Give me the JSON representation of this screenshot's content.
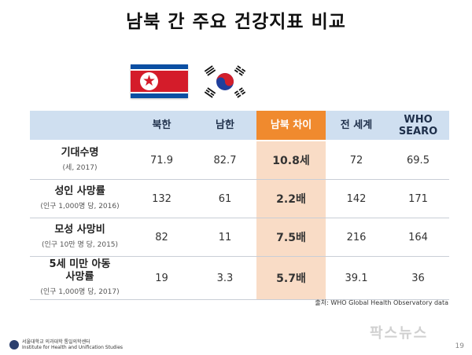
{
  "title": "남북 간 주요 건강지표 비교",
  "headers": [
    "",
    "북한",
    "남한",
    "남북 차이",
    "전 세계",
    "WHO SEARO"
  ],
  "rows": [
    {
      "label": "기대수명",
      "sub": "(세, 2017)",
      "values": [
        "71.9",
        "82.7",
        "10.8세",
        "72",
        "69.5"
      ],
      "diff_color": "blue"
    },
    {
      "label": "성인 사망률",
      "sub": "(인구 1,000명 당, 2016)",
      "values": [
        "132",
        "61",
        "2.2배",
        "142",
        "171"
      ],
      "diff_color": "blue"
    },
    {
      "label": "모성 사망비",
      "sub": "(인구 10만 명 당, 2015)",
      "values": [
        "82",
        "11",
        "7.5배",
        "216",
        "164"
      ],
      "diff_color": "red"
    },
    {
      "label": "5세 미만 아동 사망률",
      "sub": "(인구 1,000명 당, 2017)",
      "values": [
        "19",
        "3.3",
        "5.7배",
        "39.1",
        "36"
      ],
      "diff_color": "red"
    }
  ],
  "source": "출처: WHO Global Health Observatory data",
  "logo": {
    "line1": "서울대학교 의과대학 통일의학센터",
    "line2": "Institute for Health and Unification Studies"
  },
  "watermark": "팍스뉴스",
  "page_number": "19",
  "colors": {
    "header_bg": "#cfdff0",
    "highlight": "#f08a2e",
    "highlight_cell": "#f9dcc6",
    "blue": "#2f73c4",
    "red": "#d42a1f"
  }
}
